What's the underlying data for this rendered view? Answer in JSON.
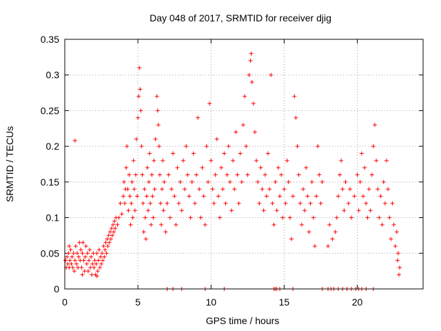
{
  "chart_data": {
    "type": "scatter",
    "title": "Day 048 of 2017, SRMTID for receiver djig",
    "xlabel": "GPS time / hours",
    "ylabel": "SRMTID / TECUs",
    "xlim": [
      0,
      24.5
    ],
    "ylim": [
      0,
      0.35
    ],
    "xticks": [
      0,
      5,
      10,
      15,
      20
    ],
    "yticks": [
      0,
      0.05,
      0.1,
      0.15,
      0.2,
      0.25,
      0.3,
      0.35
    ],
    "xtick_labels": [
      "0",
      "5",
      "10",
      "15",
      "20"
    ],
    "ytick_labels": [
      "0",
      "0.05",
      "0.1",
      "0.15",
      "0.2",
      "0.25",
      "0.3",
      "0.35"
    ],
    "grid": true,
    "marker": "+",
    "color": "#ff0000",
    "series": [
      {
        "values": [
          [
            0.05,
            0.04
          ],
          [
            0.1,
            0.03
          ],
          [
            0.15,
            0.045
          ],
          [
            0.2,
            0.035
          ],
          [
            0.25,
            0.05
          ],
          [
            0.3,
            0.03
          ],
          [
            0.35,
            0.04
          ],
          [
            0.4,
            0.055
          ],
          [
            0.45,
            0.035
          ],
          [
            0.5,
            0.045
          ],
          [
            0.55,
            0.03
          ],
          [
            0.6,
            0.05
          ],
          [
            0.65,
            0.025
          ],
          [
            0.7,
            0.04
          ],
          [
            0.75,
            0.06
          ],
          [
            0.8,
            0.035
          ],
          [
            0.85,
            0.05
          ],
          [
            0.9,
            0.03
          ],
          [
            0.95,
            0.045
          ],
          [
            1.0,
            0.065
          ],
          [
            1.05,
            0.04
          ],
          [
            1.1,
            0.055
          ],
          [
            1.15,
            0.03
          ],
          [
            1.2,
            0.05
          ],
          [
            1.25,
            0.065
          ],
          [
            1.3,
            0.04
          ],
          [
            1.35,
            0.025
          ],
          [
            1.4,
            0.045
          ],
          [
            1.45,
            0.06
          ],
          [
            1.5,
            0.035
          ],
          [
            1.55,
            0.05
          ],
          [
            1.6,
            0.025
          ],
          [
            1.65,
            0.04
          ],
          [
            1.7,
            0.055
          ],
          [
            1.75,
            0.03
          ],
          [
            1.8,
            0.045
          ],
          [
            1.85,
            0.02
          ],
          [
            1.9,
            0.035
          ],
          [
            1.95,
            0.05
          ],
          [
            2.0,
            0.03
          ],
          [
            2.05,
            0.04
          ],
          [
            2.1,
            0.02
          ],
          [
            2.15,
            0.035
          ],
          [
            2.2,
            0.05
          ],
          [
            2.25,
            0.025
          ],
          [
            2.3,
            0.04
          ],
          [
            2.35,
            0.055
          ],
          [
            2.4,
            0.03
          ],
          [
            2.45,
            0.045
          ],
          [
            2.5,
            0.035
          ],
          [
            2.55,
            0.05
          ],
          [
            2.6,
            0.04
          ],
          [
            2.65,
            0.06
          ],
          [
            2.7,
            0.045
          ],
          [
            2.75,
            0.055
          ],
          [
            2.8,
            0.065
          ],
          [
            2.85,
            0.05
          ],
          [
            2.9,
            0.07
          ],
          [
            2.95,
            0.06
          ],
          [
            3.0,
            0.075
          ],
          [
            3.05,
            0.065
          ],
          [
            3.1,
            0.08
          ],
          [
            3.15,
            0.07
          ],
          [
            3.2,
            0.085
          ],
          [
            3.25,
            0.075
          ],
          [
            3.3,
            0.09
          ],
          [
            3.35,
            0.08
          ],
          [
            3.4,
            0.095
          ],
          [
            3.45,
            0.085
          ],
          [
            3.5,
            0.1
          ],
          [
            0.7,
            0.208
          ],
          [
            0.3,
            0.06
          ],
          [
            1.2,
            0.02
          ],
          [
            2.2,
            0.018
          ],
          [
            3.6,
            0.09
          ],
          [
            3.7,
            0.1
          ],
          [
            3.8,
            0.12
          ],
          [
            3.9,
            0.105
          ],
          [
            4.0,
            0.13
          ],
          [
            4.05,
            0.15
          ],
          [
            4.1,
            0.12
          ],
          [
            4.15,
            0.14
          ],
          [
            4.2,
            0.17
          ],
          [
            4.25,
            0.2
          ],
          [
            4.3,
            0.14
          ],
          [
            4.35,
            0.11
          ],
          [
            4.4,
            0.16
          ],
          [
            4.45,
            0.13
          ],
          [
            4.5,
            0.09
          ],
          [
            4.55,
            0.12
          ],
          [
            4.6,
            0.15
          ],
          [
            4.65,
            0.1
          ],
          [
            4.7,
            0.18
          ],
          [
            4.75,
            0.14
          ],
          [
            4.8,
            0.11
          ],
          [
            4.85,
            0.16
          ],
          [
            4.9,
            0.21
          ],
          [
            4.95,
            0.13
          ],
          [
            5.0,
            0.24
          ],
          [
            5.05,
            0.27
          ],
          [
            5.1,
            0.31
          ],
          [
            5.15,
            0.28
          ],
          [
            5.2,
            0.25
          ],
          [
            5.25,
            0.2
          ],
          [
            5.3,
            0.16
          ],
          [
            5.35,
            0.12
          ],
          [
            5.4,
            0.08
          ],
          [
            5.45,
            0.14
          ],
          [
            5.5,
            0.1
          ],
          [
            5.55,
            0.07
          ],
          [
            5.6,
            0.13
          ],
          [
            5.65,
            0.17
          ],
          [
            5.7,
            0.11
          ],
          [
            5.75,
            0.15
          ],
          [
            5.8,
            0.19
          ],
          [
            5.85,
            0.12
          ],
          [
            5.9,
            0.09
          ],
          [
            5.95,
            0.16
          ],
          [
            6.0,
            0.13
          ],
          [
            6.05,
            0.1
          ],
          [
            6.1,
            0.18
          ],
          [
            6.15,
            0.14
          ],
          [
            6.2,
            0.21
          ],
          [
            6.3,
            0.27
          ],
          [
            6.35,
            0.25
          ],
          [
            6.4,
            0.23
          ],
          [
            6.45,
            0.2
          ],
          [
            6.5,
            0.16
          ],
          [
            6.55,
            0.12
          ],
          [
            6.6,
            0.09
          ],
          [
            6.65,
            0.14
          ],
          [
            6.7,
            0.18
          ],
          [
            6.75,
            0.11
          ],
          [
            6.8,
            0.15
          ],
          [
            6.9,
            0.08
          ],
          [
            7.0,
            0.12
          ],
          [
            7.1,
            0.16
          ],
          [
            7.2,
            0.1
          ],
          [
            7.3,
            0.14
          ],
          [
            7.4,
            0.19
          ],
          [
            7.5,
            0.13
          ],
          [
            7.6,
            0.09
          ],
          [
            7.7,
            0.17
          ],
          [
            7.8,
            0.12
          ],
          [
            7.9,
            0.15
          ],
          [
            8.0,
            0.11
          ],
          [
            8.1,
            0.18
          ],
          [
            8.2,
            0.14
          ],
          [
            8.3,
            0.2
          ],
          [
            8.4,
            0.16
          ],
          [
            8.5,
            0.13
          ],
          [
            8.6,
            0.1
          ],
          [
            8.7,
            0.15
          ],
          [
            8.8,
            0.19
          ],
          [
            8.9,
            0.12
          ],
          [
            9.0,
            0.16
          ],
          [
            9.1,
            0.24
          ],
          [
            9.2,
            0.14
          ],
          [
            9.3,
            0.1
          ],
          [
            9.4,
            0.17
          ],
          [
            9.5,
            0.13
          ],
          [
            9.6,
            0.09
          ],
          [
            9.7,
            0.2
          ],
          [
            9.8,
            0.15
          ],
          [
            9.9,
            0.26
          ],
          [
            10.0,
            0.18
          ],
          [
            10.1,
            0.14
          ],
          [
            10.2,
            0.12
          ],
          [
            10.3,
            0.16
          ],
          [
            10.4,
            0.21
          ],
          [
            10.5,
            0.13
          ],
          [
            10.6,
            0.1
          ],
          [
            10.7,
            0.17
          ],
          [
            10.8,
            0.14
          ],
          [
            10.9,
            0.19
          ],
          [
            11.0,
            0.12
          ],
          [
            11.1,
            0.16
          ],
          [
            11.2,
            0.2
          ],
          [
            11.3,
            0.15
          ],
          [
            11.4,
            0.11
          ],
          [
            11.5,
            0.18
          ],
          [
            11.6,
            0.14
          ],
          [
            11.7,
            0.22
          ],
          [
            11.8,
            0.16
          ],
          [
            11.9,
            0.12
          ],
          [
            12.0,
            0.19
          ],
          [
            12.1,
            0.15
          ],
          [
            12.2,
            0.23
          ],
          [
            12.3,
            0.27
          ],
          [
            12.4,
            0.2
          ],
          [
            12.5,
            0.16
          ],
          [
            12.6,
            0.3
          ],
          [
            12.7,
            0.32
          ],
          [
            12.75,
            0.33
          ],
          [
            12.8,
            0.29
          ],
          [
            12.9,
            0.26
          ],
          [
            13.0,
            0.22
          ],
          [
            13.1,
            0.18
          ],
          [
            13.2,
            0.15
          ],
          [
            13.3,
            0.12
          ],
          [
            13.4,
            0.17
          ],
          [
            13.5,
            0.14
          ],
          [
            13.6,
            0.11
          ],
          [
            13.7,
            0.16
          ],
          [
            13.8,
            0.13
          ],
          [
            13.9,
            0.19
          ],
          [
            14.0,
            0.14
          ],
          [
            14.1,
            0.3
          ],
          [
            14.2,
            0.12
          ],
          [
            14.3,
            0.09
          ],
          [
            14.4,
            0.15
          ],
          [
            14.5,
            0.11
          ],
          [
            14.6,
            0.17
          ],
          [
            14.7,
            0.13
          ],
          [
            14.8,
            0.16
          ],
          [
            14.9,
            0.1
          ],
          [
            15.0,
            0.14
          ],
          [
            15.1,
            0.12
          ],
          [
            15.2,
            0.18
          ],
          [
            15.3,
            0.15
          ],
          [
            15.4,
            0.1
          ],
          [
            15.5,
            0.07
          ],
          [
            15.6,
            0.13
          ],
          [
            15.7,
            0.27
          ],
          [
            15.8,
            0.24
          ],
          [
            15.9,
            0.2
          ],
          [
            16.0,
            0.16
          ],
          [
            16.1,
            0.12
          ],
          [
            16.2,
            0.09
          ],
          [
            16.3,
            0.14
          ],
          [
            16.4,
            0.11
          ],
          [
            16.5,
            0.17
          ],
          [
            16.6,
            0.13
          ],
          [
            16.7,
            0.08
          ],
          [
            16.8,
            0.12
          ],
          [
            16.9,
            0.15
          ],
          [
            17.0,
            0.1
          ],
          [
            17.1,
            0.06
          ],
          [
            17.2,
            0.13
          ],
          [
            17.3,
            0.2
          ],
          [
            17.4,
            0.16
          ],
          [
            17.5,
            0.12
          ],
          [
            17.6,
            0.15
          ],
          [
            18.0,
            0.06
          ],
          [
            18.1,
            0.09
          ],
          [
            18.3,
            0.07
          ],
          [
            18.5,
            0.08
          ],
          [
            18.6,
            0.1
          ],
          [
            18.7,
            0.13
          ],
          [
            18.8,
            0.16
          ],
          [
            18.9,
            0.18
          ],
          [
            19.0,
            0.14
          ],
          [
            19.1,
            0.11
          ],
          [
            19.2,
            0.15
          ],
          [
            19.4,
            0.12
          ],
          [
            19.5,
            0.14
          ],
          [
            19.6,
            0.1
          ],
          [
            19.8,
            0.13
          ],
          [
            20.0,
            0.16
          ],
          [
            20.1,
            0.11
          ],
          [
            20.2,
            0.15
          ],
          [
            20.3,
            0.19
          ],
          [
            20.4,
            0.13
          ],
          [
            20.5,
            0.17
          ],
          [
            20.6,
            0.12
          ],
          [
            20.7,
            0.1
          ],
          [
            20.8,
            0.14
          ],
          [
            20.9,
            0.11
          ],
          [
            21.0,
            0.16
          ],
          [
            21.1,
            0.2
          ],
          [
            21.2,
            0.23
          ],
          [
            21.3,
            0.18
          ],
          [
            21.4,
            0.14
          ],
          [
            21.5,
            0.1
          ],
          [
            21.6,
            0.13
          ],
          [
            21.7,
            0.09
          ],
          [
            21.8,
            0.15
          ],
          [
            21.9,
            0.12
          ],
          [
            22.0,
            0.18
          ],
          [
            22.1,
            0.14
          ],
          [
            22.2,
            0.1
          ],
          [
            22.3,
            0.07
          ],
          [
            22.4,
            0.12
          ],
          [
            22.5,
            0.09
          ],
          [
            22.6,
            0.06
          ],
          [
            22.7,
            0.08
          ],
          [
            22.75,
            0.04
          ],
          [
            22.8,
            0.05
          ],
          [
            22.85,
            0.02
          ],
          [
            22.9,
            0.03
          ],
          [
            7.0,
            0.0
          ],
          [
            7.4,
            0.0
          ],
          [
            8.0,
            0.0
          ],
          [
            9.6,
            0.0
          ],
          [
            10.9,
            0.0
          ],
          [
            14.3,
            0.0
          ],
          [
            14.4,
            0.0
          ],
          [
            14.5,
            0.0
          ],
          [
            14.7,
            0.0
          ],
          [
            15.6,
            0.0
          ],
          [
            17.6,
            0.0
          ],
          [
            18.0,
            0.0
          ],
          [
            18.2,
            0.0
          ],
          [
            18.4,
            0.0
          ],
          [
            18.7,
            0.0
          ],
          [
            19.0,
            0.0
          ],
          [
            19.3,
            0.0
          ],
          [
            19.6,
            0.0
          ],
          [
            19.9,
            0.0
          ],
          [
            20.1,
            0.0
          ],
          [
            20.3,
            0.0
          ],
          [
            20.6,
            0.0
          ],
          [
            21.1,
            0.0
          ]
        ]
      }
    ]
  }
}
